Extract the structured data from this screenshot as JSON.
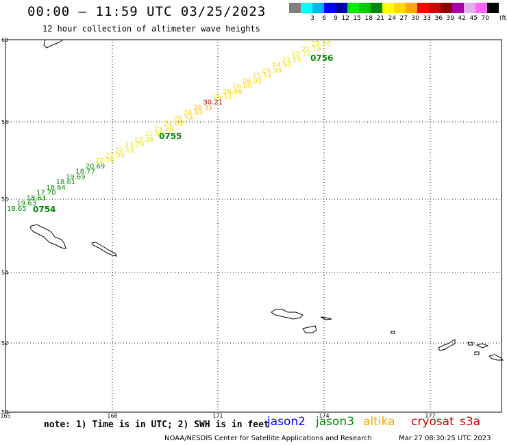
{
  "header": {
    "title": "00:00 – 11:59 UTC 03/25/2023",
    "subtitle": "12 hour collection of altimeter wave heights"
  },
  "color_scale": {
    "unit": "(ft)",
    "swatches": [
      {
        "color": "#808080",
        "label": ""
      },
      {
        "color": "#00ffff",
        "label": "3"
      },
      {
        "color": "#00b0ff",
        "label": "6"
      },
      {
        "color": "#0000ff",
        "label": "9"
      },
      {
        "color": "#0000aa",
        "label": "12"
      },
      {
        "color": "#00ee00",
        "label": "15"
      },
      {
        "color": "#00cc00",
        "label": "18"
      },
      {
        "color": "#008800",
        "label": "21"
      },
      {
        "color": "#ffff00",
        "label": "24"
      },
      {
        "color": "#ffd700",
        "label": "27"
      },
      {
        "color": "#ffa500",
        "label": "30"
      },
      {
        "color": "#ff0000",
        "label": "33"
      },
      {
        "color": "#cc0000",
        "label": "36"
      },
      {
        "color": "#880000",
        "label": "39"
      },
      {
        "color": "#aa00aa",
        "label": "42"
      },
      {
        "color": "#e6b0f0",
        "label": "45"
      },
      {
        "color": "#ff66ff",
        "label": "70"
      },
      {
        "color": "#000000",
        "label": ""
      }
    ]
  },
  "map": {
    "lat_labels": [
      "60",
      "58",
      "56",
      "54",
      "52",
      "50"
    ],
    "lon_labels": [
      "165",
      "168",
      "171",
      "174",
      "177"
    ],
    "time_labels": [
      "0754",
      "0755",
      "0756"
    ],
    "observations": [
      {
        "v": "18.65",
        "c": "#008800"
      },
      {
        "v": "19.63",
        "c": "#008800"
      },
      {
        "v": "18.63",
        "c": "#008800"
      },
      {
        "v": "17.70",
        "c": "#008800"
      },
      {
        "v": "18.64",
        "c": "#008800"
      },
      {
        "v": "18.61",
        "c": "#008800"
      },
      {
        "v": "19.69",
        "c": "#008800"
      },
      {
        "v": "18.77",
        "c": "#008800"
      },
      {
        "v": "20.69",
        "c": "#008800"
      },
      {
        "v": "22.70",
        "c": "#e8e800"
      },
      {
        "v": "22.09",
        "c": "#ffd700"
      },
      {
        "v": "22.15",
        "c": "#e8e800"
      },
      {
        "v": "23.29",
        "c": "#e8e800"
      },
      {
        "v": "22.26",
        "c": "#e8e800"
      },
      {
        "v": "22.90",
        "c": "#e8e800"
      },
      {
        "v": "23.28",
        "c": "#ffd700"
      },
      {
        "v": "24.68",
        "c": "#ffd700"
      },
      {
        "v": "26.54",
        "c": "#ffd700"
      },
      {
        "v": "26.93",
        "c": "#ffd700"
      },
      {
        "v": "28.31",
        "c": "#ffa500"
      },
      {
        "v": "30.21",
        "c": "#cc0000"
      },
      {
        "v": "26.11",
        "c": "#ffd700"
      },
      {
        "v": "26.96",
        "c": "#ffd700"
      },
      {
        "v": "26.08",
        "c": "#ffd700"
      },
      {
        "v": "26.92",
        "c": "#ffd700"
      },
      {
        "v": "25.51",
        "c": "#ffd700"
      },
      {
        "v": "24.93",
        "c": "#ffd700"
      },
      {
        "v": "24.93",
        "c": "#ffd700"
      },
      {
        "v": "23.59",
        "c": "#ffd700"
      },
      {
        "v": "22.74",
        "c": "#e8e800"
      },
      {
        "v": "22.79",
        "c": "#e8e800"
      },
      {
        "v": "23.86",
        "c": "#e8e800"
      }
    ]
  },
  "footer": {
    "note": "note: 1) Time is in UTC; 2) SWH is in feet",
    "satellites": [
      {
        "name": "jason2",
        "color": "#0000ff"
      },
      {
        "name": "jason3",
        "color": "#008800"
      },
      {
        "name": "altika",
        "color": "#ffa500"
      },
      {
        "name": "cryosat",
        "color": "#cc0000"
      },
      {
        "name": "s3a",
        "color": "#cc0000"
      }
    ],
    "credit": "NOAA/NESDIS Center for Satellite Applications and Research",
    "generated": "Mar 27 08:30:25 UTC 2023"
  }
}
